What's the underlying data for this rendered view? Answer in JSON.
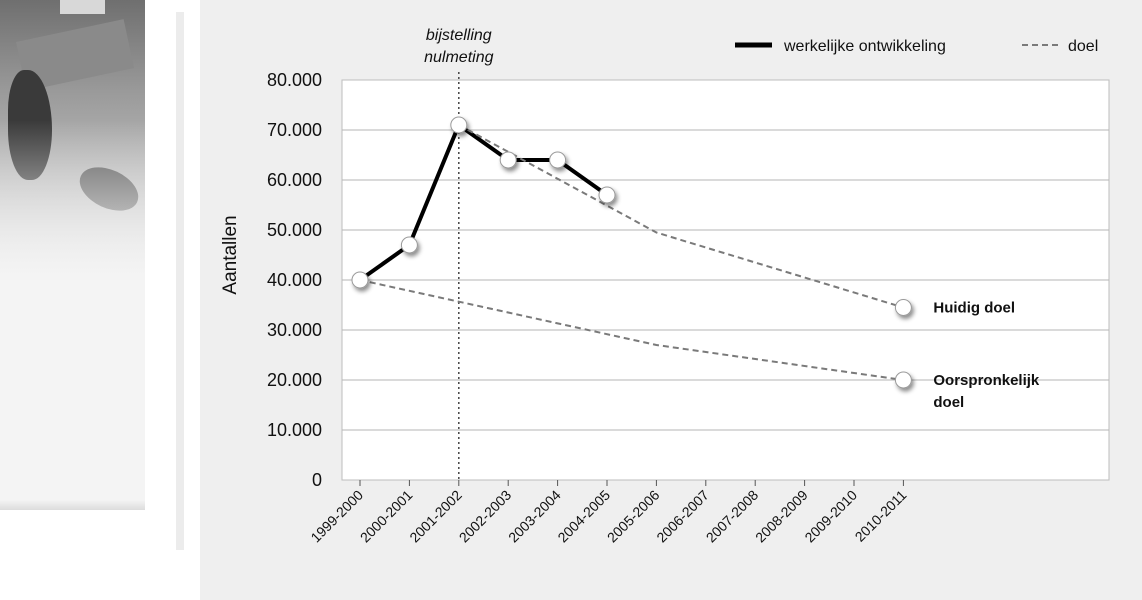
{
  "chart_data": {
    "type": "line",
    "ylabel": "Aantallen",
    "ylim": [
      0,
      80000
    ],
    "yticks": [
      0,
      10000,
      20000,
      30000,
      40000,
      50000,
      60000,
      70000,
      80000
    ],
    "ytick_labels": [
      "0",
      "10.000",
      "20.000",
      "30.000",
      "40.000",
      "50.000",
      "60.000",
      "70.000",
      "80.000"
    ],
    "categories": [
      "1999-2000",
      "2000-2001",
      "2001-2002",
      "2002-2003",
      "2003-2004",
      "2004-2005",
      "2005-2006",
      "2006-2007",
      "2007-2008",
      "2008-2009",
      "2009-2010",
      "2010-2011"
    ],
    "grid": true,
    "legend_position": "top-right",
    "legend": [
      {
        "label": "werkelijke ontwikkeling",
        "style": "solid"
      },
      {
        "label": "doel",
        "style": "dashed"
      }
    ],
    "series": [
      {
        "name": "werkelijke ontwikkeling",
        "style": "solid",
        "color": "#000000",
        "x": [
          "1999-2000",
          "2000-2001",
          "2001-2002",
          "2002-2003",
          "2003-2004",
          "2004-2005"
        ],
        "values": [
          40000,
          47000,
          71000,
          64000,
          64000,
          57000
        ]
      },
      {
        "name": "doel",
        "style": "dashed",
        "color": "#7a7a7a",
        "x": [
          "2001-2002",
          "2005-2006",
          "2010-2011"
        ],
        "values": [
          71000,
          49500,
          34500
        ],
        "end_label": "Huidig doel"
      },
      {
        "name": "doel",
        "style": "dashed",
        "color": "#7a7a7a",
        "x": [
          "1999-2000",
          "2005-2006",
          "2010-2011"
        ],
        "values": [
          40000,
          27000,
          20000
        ],
        "end_label": "Oorspronkelijk doel",
        "end_label_lines": [
          "Oorspronkelijk",
          "doel"
        ]
      }
    ],
    "annotations": [
      {
        "text_lines": [
          "bijstelling",
          "nulmeting"
        ],
        "x": "2001-2002",
        "style": "dotted-vertical-line"
      }
    ]
  }
}
